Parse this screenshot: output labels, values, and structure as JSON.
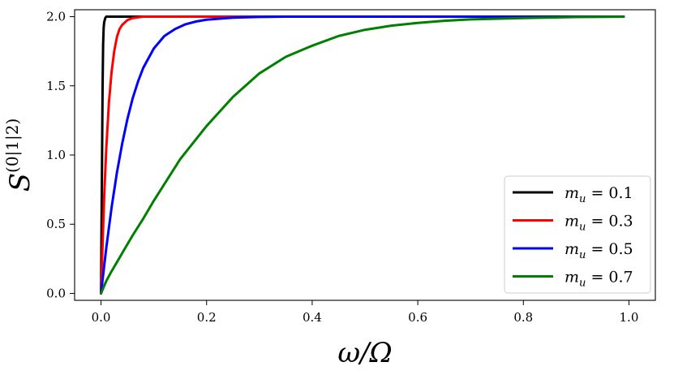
{
  "chart_data": {
    "type": "line",
    "title": "",
    "xlabel": "ω/Ω",
    "ylabel": "S",
    "ylabel_superscript": "(0|1|2)",
    "xlim": [
      -0.05,
      1.05
    ],
    "ylim": [
      -0.05,
      2.05
    ],
    "xticks": [
      0.0,
      0.2,
      0.4,
      0.6,
      0.8,
      1.0
    ],
    "xtick_labels": [
      "0.0",
      "0.2",
      "0.4",
      "0.6",
      "0.8",
      "1.0"
    ],
    "yticks": [
      0.0,
      0.5,
      1.0,
      1.5,
      2.0
    ],
    "ytick_labels": [
      "0.0",
      "0.5",
      "1.0",
      "1.5",
      "2.0"
    ],
    "grid": false,
    "legend_position": "bottom-right",
    "series": [
      {
        "name": "m_u = 0.1",
        "label_var": "m",
        "label_sub": "u",
        "label_rest": " = 0.1",
        "color": "#000000",
        "x": [
          0.0,
          0.001,
          0.002,
          0.003,
          0.004,
          0.005,
          0.006,
          0.008,
          0.01,
          0.015,
          0.02,
          0.05,
          0.1,
          0.2,
          0.4,
          0.6,
          0.8,
          0.99
        ],
        "y": [
          0.0,
          0.5,
          1.0,
          1.5,
          1.8,
          1.92,
          1.96,
          1.99,
          2.0,
          2.0,
          2.0,
          2.0,
          2.0,
          2.0,
          2.0,
          2.0,
          2.0,
          2.0
        ]
      },
      {
        "name": "m_u = 0.3",
        "label_var": "m",
        "label_sub": "u",
        "label_rest": " = 0.3",
        "color": "#ff0000",
        "x": [
          0.0,
          0.003,
          0.006,
          0.01,
          0.015,
          0.02,
          0.025,
          0.03,
          0.035,
          0.04,
          0.05,
          0.06,
          0.07,
          0.08,
          0.1,
          0.15,
          0.2,
          0.4,
          0.6,
          0.8,
          0.99
        ],
        "y": [
          0.0,
          0.35,
          0.7,
          1.05,
          1.38,
          1.6,
          1.75,
          1.85,
          1.91,
          1.94,
          1.975,
          1.99,
          1.995,
          2.0,
          2.0,
          2.0,
          2.0,
          2.0,
          2.0,
          2.0,
          2.0
        ]
      },
      {
        "name": "m_u = 0.5",
        "label_var": "m",
        "label_sub": "u",
        "label_rest": " = 0.5",
        "color": "#0000ff",
        "x": [
          0.0,
          0.01,
          0.02,
          0.03,
          0.04,
          0.05,
          0.06,
          0.07,
          0.08,
          0.1,
          0.12,
          0.14,
          0.16,
          0.18,
          0.2,
          0.25,
          0.3,
          0.35,
          0.4,
          0.5,
          0.6,
          0.8,
          0.99
        ],
        "y": [
          0.0,
          0.33,
          0.62,
          0.87,
          1.08,
          1.26,
          1.41,
          1.53,
          1.63,
          1.77,
          1.86,
          1.91,
          1.945,
          1.965,
          1.978,
          1.993,
          1.998,
          2.0,
          2.0,
          2.0,
          2.0,
          2.0,
          2.0
        ]
      },
      {
        "name": "m_u = 0.7",
        "label_var": "m",
        "label_sub": "u",
        "label_rest": " = 0.7",
        "color": "#007f00",
        "x": [
          0.0,
          0.01,
          0.02,
          0.04,
          0.06,
          0.08,
          0.1,
          0.12,
          0.15,
          0.2,
          0.25,
          0.3,
          0.35,
          0.4,
          0.45,
          0.5,
          0.55,
          0.6,
          0.65,
          0.7,
          0.8,
          0.9,
          0.99
        ],
        "y": [
          0.0,
          0.09,
          0.16,
          0.29,
          0.42,
          0.54,
          0.67,
          0.79,
          0.97,
          1.21,
          1.42,
          1.59,
          1.71,
          1.79,
          1.86,
          1.905,
          1.935,
          1.955,
          1.97,
          1.98,
          1.99,
          1.997,
          2.0
        ]
      }
    ]
  }
}
